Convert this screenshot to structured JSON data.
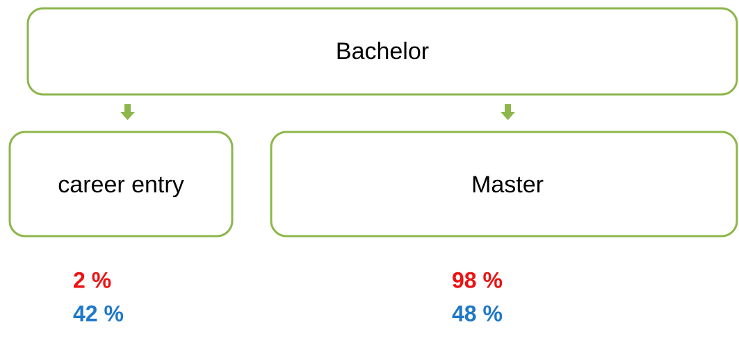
{
  "nodes": [
    {
      "label": "Bachelor"
    },
    {
      "label": "career entry",
      "stats": [
        "2 %",
        "42 %"
      ]
    },
    {
      "label": "Master",
      "stats": [
        "98 %",
        "48 %"
      ]
    }
  ]
}
